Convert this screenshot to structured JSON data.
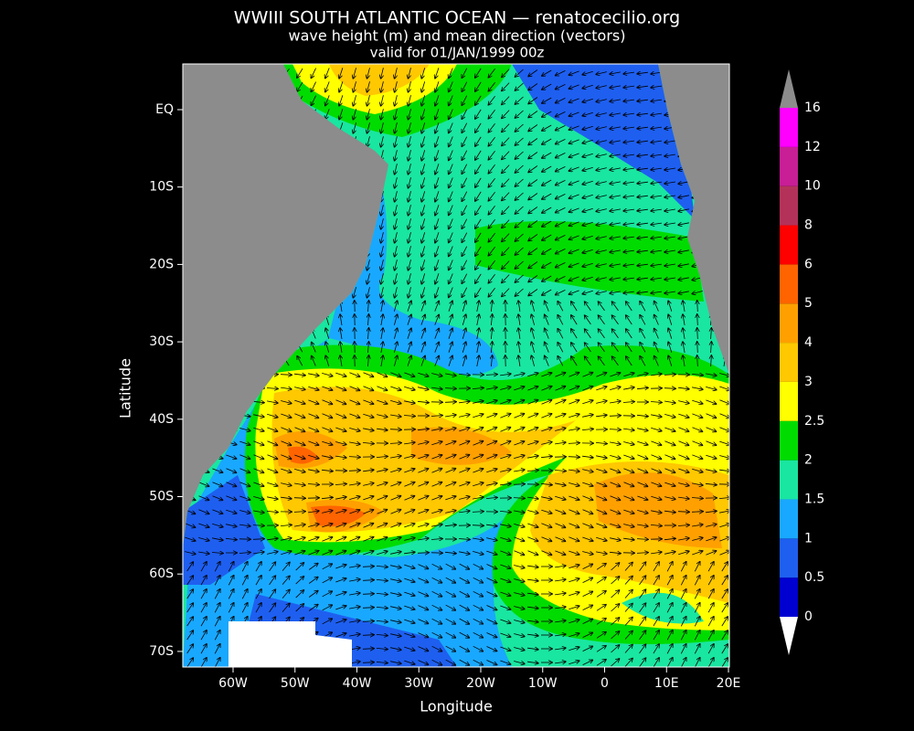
{
  "title": "WWIII SOUTH ATLANTIC OCEAN — renatocecilio.org",
  "subtitle": "wave height (m) and mean direction (vectors)",
  "valid": "valid for 01/JAN/1999 00z",
  "x_axis": {
    "label": "Longitude",
    "ticks": [
      "60W",
      "50W",
      "40W",
      "30W",
      "20W",
      "10W",
      "0",
      "10E",
      "20E"
    ]
  },
  "y_axis": {
    "label": "Latitude",
    "ticks": [
      "EQ",
      "10S",
      "20S",
      "30S",
      "40S",
      "50S",
      "60S",
      "70S"
    ]
  },
  "colorbar": {
    "levels": [
      0,
      0.5,
      1,
      1.5,
      2,
      2.5,
      3,
      4,
      5,
      6,
      8,
      10,
      12,
      16
    ],
    "colors": [
      "#0000d0",
      "#1e5ff0",
      "#19a8ff",
      "#19e6a0",
      "#00dc00",
      "#ffff00",
      "#ffc800",
      "#ffa000",
      "#ff6400",
      "#ff0000",
      "#b4325a",
      "#c81e96",
      "#ff00ff"
    ]
  }
}
